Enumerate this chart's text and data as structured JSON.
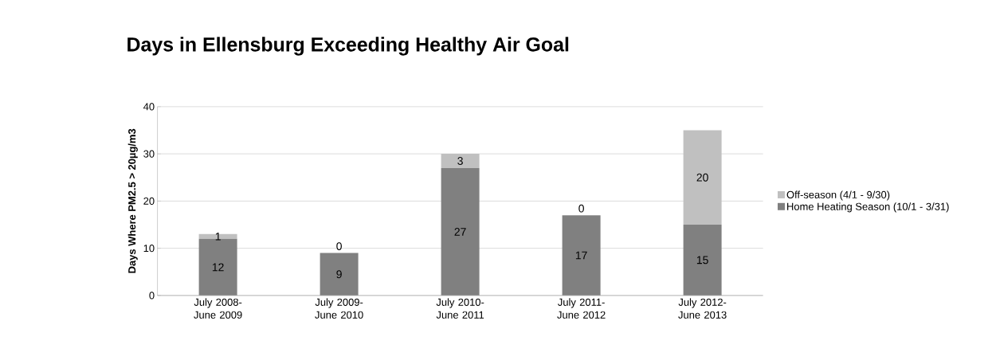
{
  "chart_data": {
    "type": "bar",
    "title": "Days in Ellensburg Exceeding Healthy Air Goal",
    "ylabel": "Days Where PM2.5 > 20µg/m3",
    "categories": [
      "July 2008- June 2009",
      "July 2009- June 2010",
      "July 2010- June 2011",
      "July 2011- June 2012",
      "July 2012- June 2013"
    ],
    "series": [
      {
        "name": "Home Heating Season (10/1 - 3/31)",
        "color": "#808080",
        "values": [
          12,
          9,
          27,
          17,
          15
        ]
      },
      {
        "name": "Off-season (4/1 - 9/30)",
        "color": "#c0c0c0",
        "values": [
          1,
          0,
          3,
          0,
          20
        ]
      }
    ],
    "stacked": true,
    "ylim": [
      0,
      40
    ],
    "yticks": [
      0,
      10,
      20,
      30,
      40
    ],
    "grid": "y",
    "legend": "right",
    "data_labels": true
  }
}
